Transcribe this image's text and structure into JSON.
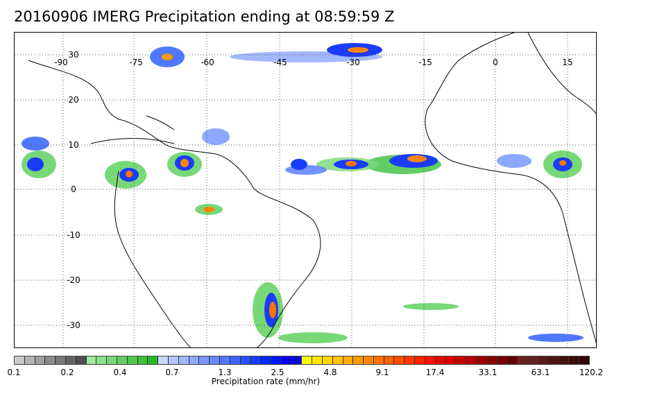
{
  "title": "20160906 IMERG Precipitation ending at 08:59:59 Z",
  "map": {
    "lon_labels": [
      "-90",
      "-75",
      "-60",
      "-45",
      "-30",
      "-15",
      "0",
      "15"
    ],
    "lat_labels": [
      "30",
      "20",
      "10",
      "0",
      "-10",
      "-20",
      "-30"
    ]
  },
  "colorbar": {
    "label": "Precipitation rate (mm/hr)",
    "ticks": [
      "0.1",
      "0.2",
      "0.4",
      "0.7",
      "1.3",
      "2.5",
      "4.8",
      "9.1",
      "17.4",
      "33.1",
      "63.1",
      "120.2"
    ],
    "colors": [
      "#c8c8c8",
      "#b4b4b4",
      "#a0a0a0",
      "#8c8c8c",
      "#787878",
      "#646464",
      "#505050",
      "#a0e8a0",
      "#8ce08c",
      "#78d878",
      "#64d064",
      "#50c850",
      "#3cc03c",
      "#28b828",
      "#c8d8ff",
      "#b4c8ff",
      "#a0b8ff",
      "#8ca8ff",
      "#7898ff",
      "#6488ff",
      "#5078ff",
      "#3c64ff",
      "#2850ff",
      "#143cff",
      "#0028ff",
      "#0014ff",
      "#0000f0",
      "#0000dc",
      "#ffff00",
      "#ffeb00",
      "#ffd700",
      "#ffc300",
      "#ffaf00",
      "#ff9b00",
      "#ff8700",
      "#ff7300",
      "#ff5f00",
      "#ff4b00",
      "#ff3700",
      "#ff2300",
      "#ff0f00",
      "#f00000",
      "#dc0000",
      "#c80000",
      "#b40000",
      "#a00000",
      "#8c0000",
      "#780000",
      "#640000",
      "#6e1e1e",
      "#642020",
      "#5a1a1a",
      "#501414",
      "#460f0f",
      "#3c0a0a",
      "#320505"
    ]
  }
}
